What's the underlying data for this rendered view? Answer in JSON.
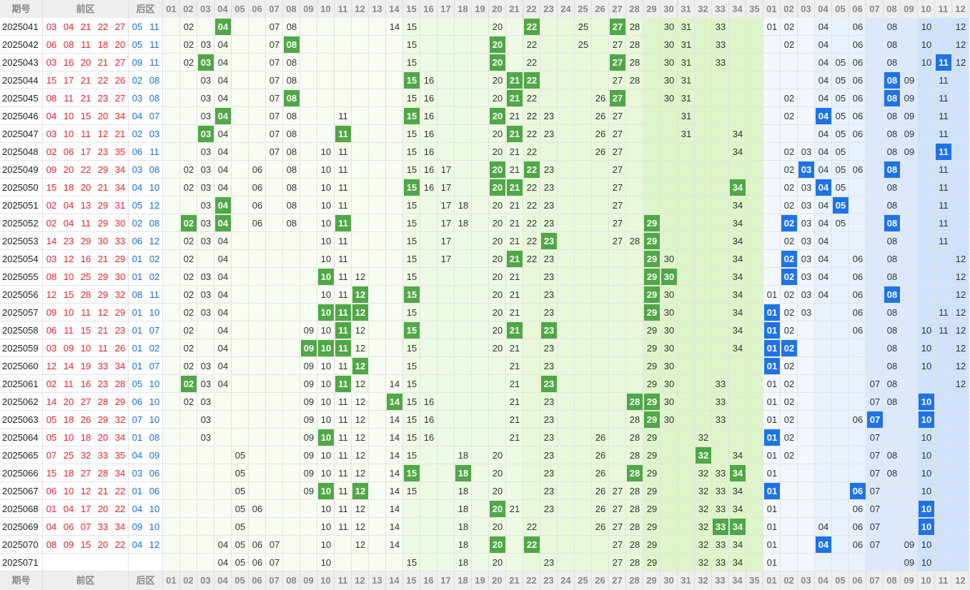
{
  "header": {
    "issue": "期号",
    "front": "前区",
    "back": "后区",
    "front_cols": [
      "01",
      "02",
      "03",
      "04",
      "05",
      "06",
      "07",
      "08",
      "09",
      "10",
      "11",
      "12",
      "13",
      "14",
      "15",
      "16",
      "17",
      "18",
      "19",
      "20",
      "21",
      "22",
      "23",
      "24",
      "25",
      "26",
      "27",
      "28",
      "29",
      "30",
      "31",
      "32",
      "33",
      "34",
      "35"
    ],
    "back_cols": [
      "01",
      "02",
      "03",
      "04",
      "05",
      "06",
      "07",
      "08",
      "09",
      "10",
      "11",
      "12"
    ]
  },
  "rows": [
    {
      "issue": "2025041",
      "front": [
        "03",
        "04",
        "21",
        "22",
        "27"
      ],
      "back": [
        "05",
        "11"
      ],
      "front_plain": [
        "02",
        "07",
        "08",
        "14",
        "15",
        "20",
        "25",
        "28",
        "30",
        "31",
        "33"
      ],
      "front_hits": [
        "04",
        "22",
        "27"
      ],
      "back_plain": [
        "01",
        "02",
        "04",
        "06",
        "08",
        "10",
        "12"
      ],
      "back_hits": []
    },
    {
      "issue": "2025042",
      "front": [
        "06",
        "08",
        "11",
        "18",
        "20"
      ],
      "back": [
        "05",
        "11"
      ],
      "front_plain": [
        "02",
        "03",
        "04",
        "07",
        "15",
        "22",
        "25",
        "27",
        "28",
        "30",
        "31",
        "33"
      ],
      "front_hits": [
        "08",
        "20"
      ],
      "back_plain": [
        "02",
        "04",
        "06",
        "08",
        "10",
        "12"
      ],
      "back_hits": []
    },
    {
      "issue": "2025043",
      "front": [
        "03",
        "16",
        "20",
        "21",
        "27"
      ],
      "back": [
        "09",
        "11"
      ],
      "front_plain": [
        "02",
        "04",
        "07",
        "08",
        "15",
        "22",
        "28",
        "30",
        "31",
        "33"
      ],
      "front_hits": [
        "03",
        "20",
        "27"
      ],
      "back_plain": [
        "04",
        "05",
        "06",
        "08",
        "10",
        "12"
      ],
      "back_hits": [
        "11"
      ]
    },
    {
      "issue": "2025044",
      "front": [
        "15",
        "17",
        "21",
        "22",
        "26"
      ],
      "back": [
        "02",
        "08"
      ],
      "front_plain": [
        "03",
        "04",
        "07",
        "08",
        "16",
        "20",
        "27",
        "28",
        "30",
        "31"
      ],
      "front_hits": [
        "15",
        "21",
        "22"
      ],
      "back_plain": [
        "04",
        "05",
        "06",
        "09",
        "11"
      ],
      "back_hits": [
        "08"
      ]
    },
    {
      "issue": "2025045",
      "front": [
        "08",
        "11",
        "21",
        "23",
        "27"
      ],
      "back": [
        "03",
        "08"
      ],
      "front_plain": [
        "03",
        "04",
        "07",
        "15",
        "16",
        "20",
        "22",
        "26",
        "30",
        "31"
      ],
      "front_hits": [
        "08",
        "21",
        "27"
      ],
      "back_plain": [
        "02",
        "04",
        "05",
        "06",
        "09",
        "11"
      ],
      "back_hits": [
        "08"
      ]
    },
    {
      "issue": "2025046",
      "front": [
        "04",
        "10",
        "15",
        "20",
        "34"
      ],
      "back": [
        "04",
        "07"
      ],
      "front_plain": [
        "03",
        "07",
        "08",
        "11",
        "16",
        "21",
        "22",
        "23",
        "26",
        "27",
        "31"
      ],
      "front_hits": [
        "04",
        "15",
        "20"
      ],
      "back_plain": [
        "02",
        "05",
        "06",
        "08",
        "09",
        "11"
      ],
      "back_hits": [
        "04"
      ]
    },
    {
      "issue": "2025047",
      "front": [
        "03",
        "10",
        "11",
        "12",
        "21"
      ],
      "back": [
        "02",
        "03"
      ],
      "front_plain": [
        "04",
        "07",
        "08",
        "15",
        "16",
        "20",
        "22",
        "23",
        "26",
        "27",
        "31",
        "34"
      ],
      "front_hits": [
        "03",
        "11",
        "21"
      ],
      "back_plain": [
        "04",
        "05",
        "06",
        "08",
        "09",
        "11"
      ],
      "back_hits": []
    },
    {
      "issue": "2025048",
      "front": [
        "02",
        "06",
        "17",
        "23",
        "35"
      ],
      "back": [
        "06",
        "11"
      ],
      "front_plain": [
        "03",
        "04",
        "07",
        "08",
        "10",
        "11",
        "15",
        "16",
        "20",
        "21",
        "22",
        "26",
        "27",
        "34"
      ],
      "front_hits": [],
      "back_plain": [
        "02",
        "03",
        "04",
        "05",
        "08",
        "09"
      ],
      "back_hits": [
        "11"
      ]
    },
    {
      "issue": "2025049",
      "front": [
        "09",
        "20",
        "22",
        "29",
        "34"
      ],
      "back": [
        "03",
        "08"
      ],
      "front_plain": [
        "02",
        "03",
        "04",
        "06",
        "08",
        "10",
        "11",
        "15",
        "16",
        "17",
        "21",
        "23",
        "27"
      ],
      "front_hits": [
        "20",
        "22"
      ],
      "back_plain": [
        "02",
        "04",
        "05",
        "06",
        "11"
      ],
      "back_hits": [
        "03",
        "08"
      ]
    },
    {
      "issue": "2025050",
      "front": [
        "15",
        "18",
        "20",
        "21",
        "34"
      ],
      "back": [
        "04",
        "10"
      ],
      "front_plain": [
        "02",
        "03",
        "04",
        "06",
        "08",
        "10",
        "11",
        "16",
        "17",
        "22",
        "23",
        "27"
      ],
      "front_hits": [
        "15",
        "20",
        "21",
        "34"
      ],
      "back_plain": [
        "02",
        "03",
        "05",
        "08",
        "11"
      ],
      "back_hits": [
        "04"
      ]
    },
    {
      "issue": "2025051",
      "front": [
        "02",
        "04",
        "13",
        "29",
        "31"
      ],
      "back": [
        "05",
        "12"
      ],
      "front_plain": [
        "03",
        "06",
        "08",
        "10",
        "11",
        "15",
        "17",
        "18",
        "20",
        "21",
        "22",
        "23",
        "27",
        "34"
      ],
      "front_hits": [
        "04"
      ],
      "back_plain": [
        "02",
        "03",
        "04",
        "08",
        "11"
      ],
      "back_hits": [
        "05"
      ]
    },
    {
      "issue": "2025052",
      "front": [
        "02",
        "04",
        "11",
        "29",
        "30"
      ],
      "back": [
        "02",
        "08"
      ],
      "front_plain": [
        "03",
        "06",
        "08",
        "10",
        "15",
        "17",
        "18",
        "20",
        "21",
        "22",
        "23",
        "27",
        "34"
      ],
      "front_hits": [
        "02",
        "04",
        "11",
        "29"
      ],
      "back_plain": [
        "03",
        "04",
        "05",
        "11"
      ],
      "back_hits": [
        "02",
        "08"
      ]
    },
    {
      "issue": "2025053",
      "front": [
        "14",
        "23",
        "29",
        "30",
        "33"
      ],
      "back": [
        "06",
        "12"
      ],
      "front_plain": [
        "02",
        "03",
        "04",
        "10",
        "11",
        "15",
        "17",
        "20",
        "21",
        "22",
        "27",
        "28",
        "34"
      ],
      "front_hits": [
        "23",
        "29"
      ],
      "back_plain": [
        "02",
        "03",
        "04",
        "08",
        "11"
      ],
      "back_hits": []
    },
    {
      "issue": "2025054",
      "front": [
        "03",
        "12",
        "16",
        "21",
        "29"
      ],
      "back": [
        "01",
        "02"
      ],
      "front_plain": [
        "02",
        "04",
        "10",
        "11",
        "15",
        "17",
        "20",
        "22",
        "23",
        "30",
        "34"
      ],
      "front_hits": [
        "21",
        "29"
      ],
      "back_plain": [
        "03",
        "04",
        "06",
        "08",
        "12"
      ],
      "back_hits": [
        "02"
      ]
    },
    {
      "issue": "2025055",
      "front": [
        "08",
        "10",
        "25",
        "29",
        "30"
      ],
      "back": [
        "01",
        "02"
      ],
      "front_plain": [
        "02",
        "03",
        "04",
        "11",
        "12",
        "15",
        "20",
        "21",
        "23",
        "34"
      ],
      "front_hits": [
        "10",
        "29",
        "30"
      ],
      "back_plain": [
        "03",
        "04",
        "06",
        "08",
        "12"
      ],
      "back_hits": [
        "02"
      ]
    },
    {
      "issue": "2025056",
      "front": [
        "12",
        "15",
        "28",
        "29",
        "32"
      ],
      "back": [
        "08",
        "11"
      ],
      "front_plain": [
        "02",
        "03",
        "04",
        "10",
        "11",
        "20",
        "21",
        "23",
        "30",
        "34"
      ],
      "front_hits": [
        "12",
        "15",
        "29"
      ],
      "back_plain": [
        "01",
        "02",
        "03",
        "04",
        "06",
        "12"
      ],
      "back_hits": [
        "08"
      ]
    },
    {
      "issue": "2025057",
      "front": [
        "09",
        "10",
        "11",
        "12",
        "29"
      ],
      "back": [
        "01",
        "10"
      ],
      "front_plain": [
        "02",
        "03",
        "04",
        "15",
        "20",
        "21",
        "23",
        "30",
        "34"
      ],
      "front_hits": [
        "10",
        "11",
        "12",
        "29"
      ],
      "back_plain": [
        "02",
        "03",
        "06",
        "08",
        "11",
        "12"
      ],
      "back_hits": [
        "01"
      ]
    },
    {
      "issue": "2025058",
      "front": [
        "06",
        "11",
        "15",
        "21",
        "23"
      ],
      "back": [
        "01",
        "07"
      ],
      "front_plain": [
        "02",
        "04",
        "09",
        "10",
        "12",
        "20",
        "29",
        "30",
        "34"
      ],
      "front_hits": [
        "11",
        "15",
        "21",
        "23"
      ],
      "back_plain": [
        "02",
        "06",
        "08",
        "10",
        "11",
        "12"
      ],
      "back_hits": [
        "01"
      ]
    },
    {
      "issue": "2025059",
      "front": [
        "03",
        "09",
        "10",
        "11",
        "26"
      ],
      "back": [
        "01",
        "02"
      ],
      "front_plain": [
        "02",
        "04",
        "12",
        "15",
        "20",
        "21",
        "23",
        "29",
        "30",
        "34"
      ],
      "front_hits": [
        "09",
        "10",
        "11"
      ],
      "back_plain": [
        "08",
        "10",
        "12"
      ],
      "back_hits": [
        "01",
        "02"
      ]
    },
    {
      "issue": "2025060",
      "front": [
        "12",
        "14",
        "19",
        "33",
        "34"
      ],
      "back": [
        "01",
        "07"
      ],
      "front_plain": [
        "02",
        "03",
        "04",
        "09",
        "10",
        "11",
        "15",
        "21",
        "23",
        "29",
        "30"
      ],
      "front_hits": [
        "12"
      ],
      "back_plain": [
        "02",
        "08",
        "10",
        "12"
      ],
      "back_hits": [
        "01"
      ]
    },
    {
      "issue": "2025061",
      "front": [
        "02",
        "11",
        "16",
        "23",
        "28"
      ],
      "back": [
        "05",
        "10"
      ],
      "front_plain": [
        "03",
        "04",
        "09",
        "10",
        "12",
        "14",
        "15",
        "21",
        "29",
        "30",
        "33"
      ],
      "front_hits": [
        "02",
        "11",
        "23"
      ],
      "back_plain": [
        "01",
        "02",
        "07",
        "08",
        "12"
      ],
      "back_hits": []
    },
    {
      "issue": "2025062",
      "front": [
        "14",
        "20",
        "27",
        "28",
        "29"
      ],
      "back": [
        "06",
        "10"
      ],
      "front_plain": [
        "02",
        "03",
        "09",
        "10",
        "11",
        "12",
        "15",
        "16",
        "21",
        "23",
        "30",
        "33"
      ],
      "front_hits": [
        "14",
        "28",
        "29"
      ],
      "back_plain": [
        "01",
        "02",
        "07",
        "08"
      ],
      "back_hits": [
        "10"
      ]
    },
    {
      "issue": "2025063",
      "front": [
        "05",
        "18",
        "26",
        "29",
        "32"
      ],
      "back": [
        "07",
        "10"
      ],
      "front_plain": [
        "03",
        "09",
        "10",
        "11",
        "12",
        "14",
        "15",
        "16",
        "21",
        "23",
        "28",
        "30",
        "33"
      ],
      "front_hits": [
        "29"
      ],
      "back_plain": [
        "01",
        "02",
        "06"
      ],
      "back_hits": [
        "07",
        "10"
      ]
    },
    {
      "issue": "2025064",
      "front": [
        "05",
        "10",
        "18",
        "20",
        "34"
      ],
      "back": [
        "01",
        "08"
      ],
      "front_plain": [
        "03",
        "09",
        "11",
        "12",
        "14",
        "15",
        "16",
        "21",
        "23",
        "26",
        "28",
        "29",
        "32"
      ],
      "front_hits": [
        "10"
      ],
      "back_plain": [
        "02",
        "07",
        "10"
      ],
      "back_hits": [
        "01"
      ]
    },
    {
      "issue": "2025065",
      "front": [
        "07",
        "25",
        "32",
        "33",
        "35"
      ],
      "back": [
        "04",
        "09"
      ],
      "front_plain": [
        "05",
        "09",
        "10",
        "11",
        "12",
        "14",
        "15",
        "18",
        "20",
        "23",
        "26",
        "28",
        "29",
        "34"
      ],
      "front_hits": [
        "32"
      ],
      "back_plain": [
        "01",
        "02",
        "07",
        "08",
        "10"
      ],
      "back_hits": []
    },
    {
      "issue": "2025066",
      "front": [
        "15",
        "18",
        "27",
        "28",
        "34"
      ],
      "back": [
        "03",
        "06"
      ],
      "front_plain": [
        "05",
        "09",
        "10",
        "11",
        "12",
        "14",
        "20",
        "23",
        "26",
        "29",
        "32",
        "33"
      ],
      "front_hits": [
        "15",
        "18",
        "28",
        "34"
      ],
      "back_plain": [
        "01",
        "07",
        "08",
        "10"
      ],
      "back_hits": []
    },
    {
      "issue": "2025067",
      "front": [
        "06",
        "10",
        "12",
        "21",
        "22"
      ],
      "back": [
        "01",
        "06"
      ],
      "front_plain": [
        "05",
        "09",
        "11",
        "14",
        "15",
        "18",
        "20",
        "23",
        "26",
        "27",
        "28",
        "29",
        "32",
        "33",
        "34"
      ],
      "front_hits": [
        "10",
        "12"
      ],
      "back_plain": [
        "07",
        "10"
      ],
      "back_hits": [
        "01",
        "06"
      ]
    },
    {
      "issue": "2025068",
      "front": [
        "01",
        "04",
        "17",
        "20",
        "22"
      ],
      "back": [
        "04",
        "10"
      ],
      "front_plain": [
        "05",
        "06",
        "10",
        "11",
        "12",
        "14",
        "18",
        "21",
        "23",
        "26",
        "27",
        "28",
        "29",
        "32",
        "33",
        "34"
      ],
      "front_hits": [
        "20"
      ],
      "back_plain": [
        "01",
        "06",
        "07"
      ],
      "back_hits": [
        "10"
      ]
    },
    {
      "issue": "2025069",
      "front": [
        "04",
        "06",
        "07",
        "33",
        "34"
      ],
      "back": [
        "09",
        "10"
      ],
      "front_plain": [
        "05",
        "10",
        "11",
        "12",
        "14",
        "18",
        "20",
        "22",
        "26",
        "27",
        "28",
        "29",
        "32"
      ],
      "front_hits": [
        "33",
        "34"
      ],
      "back_plain": [
        "01",
        "04",
        "06",
        "07"
      ],
      "back_hits": [
        "10"
      ]
    },
    {
      "issue": "2025070",
      "front": [
        "08",
        "09",
        "15",
        "20",
        "22"
      ],
      "back": [
        "04",
        "12"
      ],
      "front_plain": [
        "04",
        "05",
        "06",
        "07",
        "10",
        "12",
        "14",
        "18",
        "27",
        "28",
        "29",
        "32",
        "33",
        "34"
      ],
      "front_hits": [
        "20",
        "22"
      ],
      "back_plain": [
        "01",
        "06",
        "07",
        "09",
        "10"
      ],
      "back_hits": [
        "04"
      ]
    },
    {
      "issue": "2025071",
      "front": [],
      "back": [],
      "front_plain": [
        "04",
        "05",
        "06",
        "07",
        "10",
        "15",
        "18",
        "20",
        "23",
        "27",
        "28",
        "29",
        "32",
        "33",
        "34"
      ],
      "front_hits": [],
      "back_plain": [
        "01",
        "09",
        "10"
      ],
      "back_hits": []
    }
  ]
}
